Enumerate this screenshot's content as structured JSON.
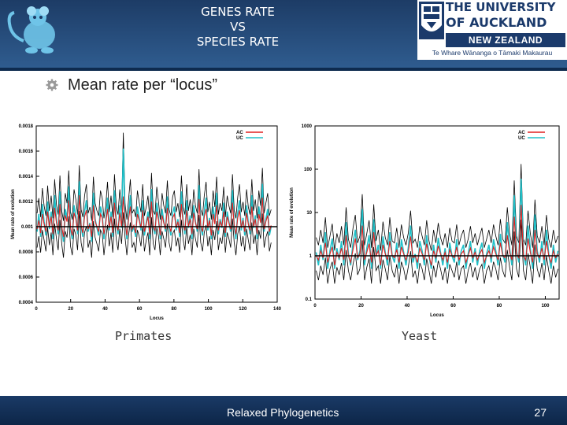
{
  "slide": {
    "title_lines": [
      "GENES RATE",
      "VS",
      "SPECIES RATE"
    ],
    "bullet": "Mean rate per “locus”",
    "captions": {
      "left": "Primates",
      "right": "Yeast"
    },
    "footer": "Relaxed Phylogenetics",
    "page_number": "27"
  },
  "logo": {
    "line1": "THE UNIVERSITY",
    "line2": "OF AUCKLAND",
    "line3": "NEW ZEALAND",
    "line4": "Te Whare Wānanga o Tāmaki Makaurau"
  },
  "colors": {
    "header": "#2f5c8f",
    "ac": "#e02020",
    "uc": "#20c0c8",
    "ci": "#000000"
  },
  "chart_data": [
    {
      "type": "line",
      "title": "",
      "xlabel": "Locus",
      "ylabel": "Mean rate of evolution",
      "xlim": [
        0,
        140
      ],
      "ylim": [
        0.0004,
        0.0018
      ],
      "xticks": [
        "0",
        "20",
        "40",
        "60",
        "80",
        "100",
        "120",
        "140"
      ],
      "yticks": [
        "0.0004",
        "0.0006",
        "0.0008",
        "0.001",
        "0.0012",
        "0.0014",
        "0.0016",
        "0.0018"
      ],
      "legend": [
        "AC",
        "UC"
      ],
      "legend_position": "top-right",
      "reference_line": 0.001,
      "n_points": 134,
      "series": [
        {
          "name": "AC",
          "values": [
            0.00098,
            0.00105,
            0.00095,
            0.0011,
            0.00102,
            0.00096,
            0.00112,
            0.001,
            0.00108,
            0.00094,
            0.00115,
            0.00103,
            0.00097,
            0.00118,
            0.001,
            0.00092,
            0.00109,
            0.00104,
            0.00121,
            0.00099,
            0.00093,
            0.00111,
            0.00106,
            0.00097,
            0.00125,
            0.00101,
            0.00095,
            0.00108,
            0.00113,
            0.00098,
            0.00102,
            0.00092,
            0.00117,
            0.00104,
            0.001,
            0.00096,
            0.0011,
            0.00107,
            0.00094,
            0.00103,
            0.00114,
            0.00099,
            0.00108,
            0.00095,
            0.00119,
            0.00102,
            0.00097,
            0.00111,
            0.001,
            0.00124,
            0.00104,
            0.00093,
            0.00106,
            0.00116,
            0.00098,
            0.00101,
            0.00095,
            0.0011,
            0.00105,
            0.00099,
            0.00113,
            0.00096,
            0.00102,
            0.00108,
            0.00094,
            0.0012,
            0.001,
            0.00097,
            0.00112,
            0.00105,
            0.00093,
            0.00109,
            0.00103,
            0.00098,
            0.00115,
            0.00101,
            0.00096,
            0.00107,
            0.0011,
            0.00099,
            0.00104,
            0.00095,
            0.00118,
            0.00102,
            0.00097,
            0.00113,
            0.001,
            0.00106,
            0.00094,
            0.00111,
            0.00103,
            0.00098,
            0.00122,
            0.00101,
            0.00096,
            0.00108,
            0.00114,
            0.00099,
            0.00105,
            0.00093,
            0.0011,
            0.00102,
            0.00117,
            0.00097,
            0.00104,
            0.001,
            0.00112,
            0.00095,
            0.00108,
            0.00103,
            0.00098,
            0.00119,
            0.00101,
            0.00094,
            0.00107,
            0.00113,
            0.00099,
            0.00105,
            0.00096,
            0.00111,
            0.00102,
            0.00097,
            0.00116,
            0.001,
            0.00106,
            0.00094,
            0.0011,
            0.00103,
            0.00123,
            0.00098,
            0.00104,
            0.00109,
            0.00096,
            0.00101
          ]
        },
        {
          "name": "UC",
          "values": [
            0.00096,
            0.0011,
            0.00092,
            0.00118,
            0.00104,
            0.00093,
            0.0012,
            0.00098,
            0.00112,
            0.0009,
            0.00125,
            0.00105,
            0.00094,
            0.00128,
            0.00099,
            0.00088,
            0.00114,
            0.00106,
            0.00132,
            0.00097,
            0.0009,
            0.00117,
            0.00109,
            0.00094,
            0.00136,
            0.001,
            0.00092,
            0.00112,
            0.00121,
            0.00096,
            0.00103,
            0.00088,
            0.00127,
            0.00106,
            0.00099,
            0.00093,
            0.00116,
            0.0011,
            0.0009,
            0.00104,
            0.00123,
            0.00097,
            0.00112,
            0.00092,
            0.00129,
            0.00103,
            0.00094,
            0.00117,
            0.00099,
            0.00162,
            0.00106,
            0.0009,
            0.00109,
            0.00125,
            0.00096,
            0.001,
            0.00092,
            0.00116,
            0.00107,
            0.00097,
            0.00121,
            0.00093,
            0.00103,
            0.00112,
            0.0009,
            0.0013,
            0.00099,
            0.00094,
            0.00119,
            0.00107,
            0.0009,
            0.00114,
            0.00104,
            0.00096,
            0.00124,
            0.001,
            0.00093,
            0.00111,
            0.00116,
            0.00097,
            0.00106,
            0.00092,
            0.00128,
            0.00103,
            0.00094,
            0.00121,
            0.00099,
            0.00109,
            0.0009,
            0.00117,
            0.00104,
            0.00096,
            0.00133,
            0.001,
            0.00093,
            0.00112,
            0.00123,
            0.00097,
            0.00107,
            0.0009,
            0.00116,
            0.00103,
            0.00127,
            0.00094,
            0.00106,
            0.00099,
            0.00119,
            0.00092,
            0.00112,
            0.00104,
            0.00096,
            0.00129,
            0.001,
            0.0009,
            0.00111,
            0.00121,
            0.00097,
            0.00107,
            0.00093,
            0.00117,
            0.00103,
            0.00094,
            0.00125,
            0.00099,
            0.00109,
            0.0009,
            0.00116,
            0.00104,
            0.00134,
            0.00096,
            0.00106,
            0.00114,
            0.00093,
            0.001
          ]
        }
      ]
    },
    {
      "type": "line",
      "title": "",
      "xlabel": "Locus",
      "ylabel": "Mean rate of evolution",
      "log_y": true,
      "xlim": [
        0,
        106
      ],
      "ylim": [
        0.1,
        1000
      ],
      "xticks": [
        "0",
        "20",
        "40",
        "60",
        "80",
        "100"
      ],
      "yticks": [
        "0.1",
        "1",
        "10",
        "100",
        "1000"
      ],
      "legend": [
        "AC",
        "UC"
      ],
      "legend_position": "top-right",
      "reference_line": 1,
      "n_points": 106,
      "series": [
        {
          "name": "AC",
          "values": [
            1.0,
            0.8,
            1.3,
            0.9,
            2.0,
            0.7,
            1.1,
            1.6,
            0.6,
            1.2,
            0.9,
            1.5,
            0.8,
            3.0,
            1.0,
            0.7,
            1.4,
            2.5,
            0.9,
            1.1,
            5.0,
            0.8,
            1.2,
            1.9,
            0.7,
            3.5,
            1.0,
            1.3,
            0.6,
            1.8,
            1.1,
            0.8,
            2.2,
            1.0,
            0.9,
            1.4,
            0.7,
            1.6,
            1.1,
            0.8,
            1.2,
            2.8,
            0.9,
            1.0,
            0.7,
            1.5,
            1.1,
            0.8,
            1.9,
            1.0,
            0.6,
            1.3,
            0.9,
            1.7,
            1.1,
            0.8,
            1.2,
            0.7,
            1.4,
            1.0,
            0.9,
            1.6,
            0.8,
            1.1,
            1.3,
            0.7,
            1.0,
            1.5,
            0.9,
            1.2,
            0.8,
            1.1,
            1.4,
            0.7,
            1.0,
            1.3,
            0.9,
            1.6,
            1.1,
            0.8,
            2.0,
            1.0,
            0.9,
            3.0,
            1.2,
            0.8,
            8.0,
            1.1,
            0.9,
            15.0,
            1.0,
            0.8,
            2.5,
            1.2,
            0.7,
            4.0,
            1.1,
            0.9,
            1.5,
            0.8,
            2.2,
            1.0,
            0.7,
            1.3,
            0.9,
            1.1
          ]
        },
        {
          "name": "UC",
          "values": [
            1.2,
            0.6,
            1.8,
            0.8,
            3.5,
            0.5,
            1.3,
            2.5,
            0.5,
            1.5,
            0.8,
            2.2,
            0.6,
            6.0,
            1.1,
            0.6,
            2.0,
            4.0,
            0.8,
            1.3,
            12.0,
            0.6,
            1.5,
            3.0,
            0.5,
            7.0,
            1.0,
            1.8,
            0.5,
            2.8,
            1.2,
            0.6,
            3.5,
            1.0,
            0.7,
            2.0,
            0.5,
            2.4,
            1.2,
            0.6,
            1.5,
            5.0,
            0.7,
            1.1,
            0.5,
            2.2,
            1.3,
            0.6,
            3.0,
            1.0,
            0.5,
            1.8,
            0.7,
            2.6,
            1.2,
            0.6,
            1.5,
            0.5,
            2.0,
            1.0,
            0.7,
            2.4,
            0.6,
            1.3,
            1.8,
            0.5,
            1.1,
            2.2,
            0.7,
            1.5,
            0.6,
            1.3,
            2.0,
            0.5,
            1.1,
            1.8,
            0.7,
            2.4,
            1.3,
            0.6,
            3.2,
            1.1,
            0.7,
            6.0,
            1.5,
            0.6,
            25.0,
            1.3,
            0.7,
            60.0,
            1.1,
            0.6,
            5.0,
            1.5,
            0.5,
            9.0,
            1.3,
            0.7,
            2.2,
            0.6,
            4.0,
            1.1,
            0.5,
            1.8,
            0.7,
            1.3
          ]
        }
      ]
    }
  ]
}
